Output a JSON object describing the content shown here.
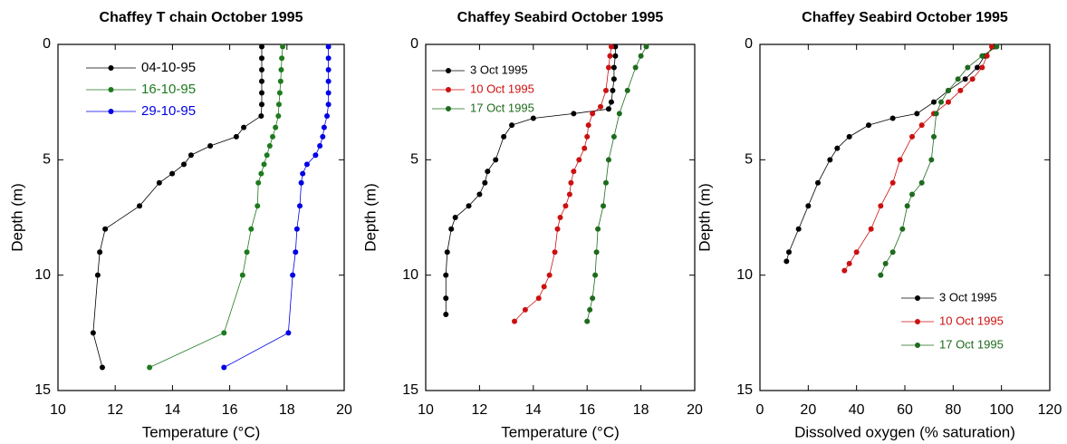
{
  "chart_data": [
    {
      "type": "line",
      "title": "Chaffey T chain October 1995",
      "xlabel": "Temperature (°C)",
      "ylabel": "Depth (m)",
      "xlim": [
        10,
        20
      ],
      "xticks": [
        10,
        12,
        14,
        16,
        18,
        20
      ],
      "ylim": [
        0,
        15
      ],
      "yticks": [
        0,
        5,
        10,
        15
      ],
      "y_inverted": true,
      "legend": "upper left",
      "series": [
        {
          "name": "04-10-95",
          "color": "#000000",
          "x": [
            17.12,
            17.12,
            17.12,
            17.12,
            17.12,
            17.12,
            17.1,
            16.49,
            16.23,
            15.32,
            14.65,
            14.4,
            13.99,
            13.54,
            12.85,
            11.65,
            11.46,
            11.39,
            11.23,
            11.55
          ],
          "values": [
            0.1,
            0.6,
            1.1,
            1.6,
            2.1,
            2.6,
            3.1,
            3.6,
            4.0,
            4.4,
            4.8,
            5.2,
            5.6,
            6.0,
            7.0,
            8.0,
            9.0,
            10.0,
            12.5,
            14.0
          ]
        },
        {
          "name": "16-10-95",
          "color": "#1e7a1e",
          "x": [
            17.85,
            17.82,
            17.8,
            17.78,
            17.75,
            17.72,
            17.7,
            17.6,
            17.5,
            17.4,
            17.3,
            17.2,
            17.1,
            17.0,
            16.97,
            16.75,
            16.6,
            16.45,
            15.8,
            13.2
          ],
          "values": [
            0.1,
            0.6,
            1.1,
            1.6,
            2.1,
            2.6,
            3.1,
            3.6,
            4.0,
            4.4,
            4.8,
            5.2,
            5.6,
            6.0,
            7.0,
            8.0,
            9.0,
            10.0,
            12.5,
            14.0
          ]
        },
        {
          "name": "29-10-95",
          "color": "#0000e6",
          "x": [
            19.45,
            19.45,
            19.45,
            19.45,
            19.45,
            19.45,
            19.4,
            19.3,
            19.25,
            19.15,
            19.0,
            18.7,
            18.55,
            18.5,
            18.45,
            18.35,
            18.3,
            18.2,
            18.05,
            15.8
          ],
          "values": [
            0.1,
            0.6,
            1.1,
            1.6,
            2.1,
            2.6,
            3.1,
            3.6,
            4.0,
            4.4,
            4.8,
            5.2,
            5.6,
            6.0,
            7.0,
            8.0,
            9.0,
            10.0,
            12.5,
            14.0
          ]
        }
      ]
    },
    {
      "type": "line",
      "title": "Chaffey Seabird October 1995",
      "xlabel": "Temperature (°C)",
      "ylabel": "Depth (m)",
      "xlim": [
        10,
        20
      ],
      "xticks": [
        10,
        12,
        14,
        16,
        18,
        20
      ],
      "ylim": [
        0,
        15
      ],
      "yticks": [
        0,
        5,
        10,
        15
      ],
      "y_inverted": true,
      "legend": "upper left",
      "series": [
        {
          "name": "3 Oct 1995",
          "color": "#000000",
          "x": [
            17.05,
            17.05,
            17.0,
            17.0,
            16.95,
            16.9,
            16.8,
            15.5,
            14.0,
            13.2,
            12.9,
            12.6,
            12.3,
            12.2,
            12.0,
            11.6,
            11.1,
            10.95,
            10.8,
            10.75,
            10.75,
            10.75
          ],
          "values": [
            0.1,
            0.5,
            1.0,
            1.5,
            2.0,
            2.5,
            2.8,
            3.0,
            3.2,
            3.5,
            4.0,
            5.0,
            5.5,
            6.0,
            6.5,
            7.0,
            7.5,
            8.0,
            9.0,
            10.0,
            11.0,
            11.7
          ]
        },
        {
          "name": "10 Oct 1995",
          "color": "#cc1010",
          "x": [
            16.9,
            16.85,
            16.8,
            16.7,
            16.5,
            16.2,
            16.05,
            16.0,
            15.9,
            15.7,
            15.5,
            15.4,
            15.35,
            15.2,
            15.0,
            14.9,
            14.8,
            14.6,
            14.4,
            14.2,
            13.7,
            13.3
          ],
          "values": [
            0.1,
            0.5,
            1.0,
            2.0,
            2.7,
            3.0,
            3.5,
            4.0,
            4.5,
            5.0,
            5.5,
            6.0,
            6.5,
            7.0,
            7.5,
            8.0,
            9.0,
            10.0,
            10.5,
            11.0,
            11.5,
            12.0
          ]
        },
        {
          "name": "17 Oct 1995",
          "color": "#1e6b1e",
          "x": [
            18.2,
            18.0,
            17.8,
            17.5,
            17.2,
            17.0,
            16.8,
            16.7,
            16.6,
            16.4,
            16.35,
            16.3,
            16.2,
            16.1,
            16.0
          ],
          "values": [
            0.1,
            0.5,
            1.0,
            2.0,
            3.0,
            4.0,
            5.0,
            6.0,
            7.0,
            8.0,
            9.0,
            10.0,
            11.0,
            11.5,
            12.0
          ]
        }
      ]
    },
    {
      "type": "line",
      "title": "Chaffey Seabird October 1995",
      "xlabel": "Dissolved oxygen (% saturation)",
      "ylabel": "Depth (m)",
      "xlim": [
        0,
        120
      ],
      "xticks": [
        0,
        20,
        40,
        60,
        80,
        100,
        120
      ],
      "ylim": [
        0,
        15
      ],
      "yticks": [
        0,
        5,
        10,
        15
      ],
      "y_inverted": true,
      "legend": "lower right",
      "series": [
        {
          "name": "3 Oct 1995",
          "color": "#000000",
          "x": [
            97,
            93,
            90,
            85,
            78,
            72,
            65,
            55,
            45,
            37,
            32,
            29,
            24,
            20,
            16,
            12,
            11
          ],
          "values": [
            0.1,
            0.5,
            1.0,
            1.5,
            2.0,
            2.5,
            3.0,
            3.2,
            3.5,
            4.0,
            4.5,
            5.0,
            6.0,
            7.0,
            8.0,
            9.0,
            9.4
          ]
        },
        {
          "name": "10 Oct 1995",
          "color": "#cc1010",
          "x": [
            96,
            94,
            92,
            88,
            83,
            78,
            72,
            67,
            63,
            58,
            55,
            50,
            46,
            40,
            37,
            35
          ],
          "values": [
            0.1,
            0.5,
            1.0,
            1.5,
            2.0,
            2.5,
            3.0,
            3.5,
            4.0,
            5.0,
            6.0,
            7.0,
            8.0,
            9.0,
            9.5,
            9.8
          ]
        },
        {
          "name": "17 Oct 1995",
          "color": "#1e6b1e",
          "x": [
            98,
            92,
            86,
            82,
            78,
            75,
            73,
            72,
            71,
            67,
            63,
            61,
            59,
            55,
            52,
            50
          ],
          "values": [
            0.1,
            0.5,
            1.0,
            1.5,
            2.0,
            2.5,
            3.0,
            4.0,
            5.0,
            6.0,
            6.5,
            7.0,
            8.0,
            9.0,
            9.5,
            10.0
          ]
        }
      ]
    }
  ]
}
